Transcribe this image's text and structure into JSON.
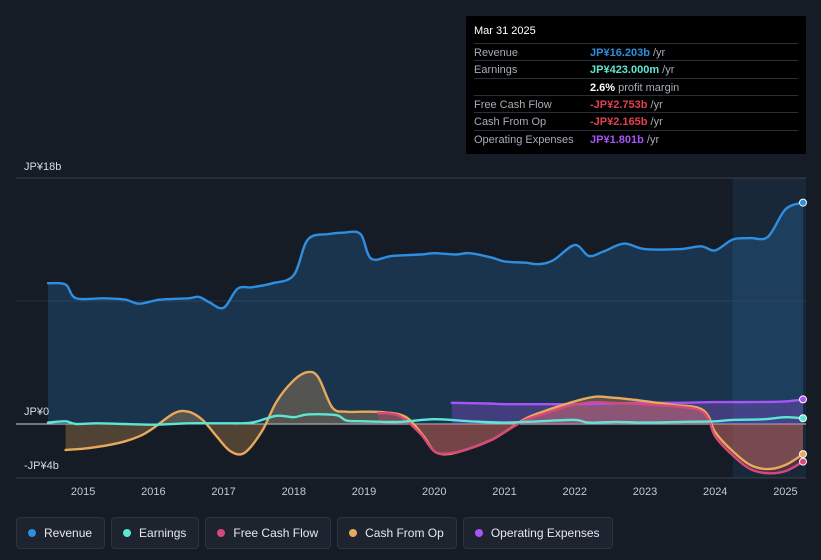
{
  "tooltip": {
    "date": "Mar 31 2025",
    "rows": [
      {
        "label": "Revenue",
        "value": "JP¥16.203b",
        "unit": "/yr",
        "color": "#2e8ee0"
      },
      {
        "label": "Earnings",
        "value": "JP¥423.000m",
        "unit": "/yr",
        "color": "#5ee6d5"
      },
      {
        "label": "",
        "value": "2.6%",
        "unit": "profit margin",
        "color": "#ffffff"
      },
      {
        "label": "Free Cash Flow",
        "value": "-JP¥2.753b",
        "unit": "/yr",
        "color": "#e04050"
      },
      {
        "label": "Cash From Op",
        "value": "-JP¥2.165b",
        "unit": "/yr",
        "color": "#e04050"
      },
      {
        "label": "Operating Expenses",
        "value": "JP¥1.801b",
        "unit": "/yr",
        "color": "#a855f7"
      }
    ]
  },
  "legend": [
    {
      "label": "Revenue",
      "color": "#2e8ee0"
    },
    {
      "label": "Earnings",
      "color": "#5ee6d5"
    },
    {
      "label": "Free Cash Flow",
      "color": "#d9487a"
    },
    {
      "label": "Cash From Op",
      "color": "#e8a95a"
    },
    {
      "label": "Operating Expenses",
      "color": "#a855f7"
    }
  ],
  "chart_data": {
    "type": "line",
    "y_tick_labels": [
      "JP¥18b",
      "JP¥0",
      "-JP¥4b"
    ],
    "y_ticks": [
      18,
      0,
      -4
    ],
    "ylim": [
      -4,
      18
    ],
    "xlim": [
      2014.5,
      2025.25
    ],
    "x_tick_labels": [
      "2015",
      "2016",
      "2017",
      "2018",
      "2019",
      "2020",
      "2021",
      "2022",
      "2023",
      "2024",
      "2025"
    ],
    "x_ticks": [
      2015,
      2016,
      2017,
      2018,
      2019,
      2020,
      2021,
      2022,
      2023,
      2024,
      2025
    ],
    "forecast_shade_start": 2024.25,
    "series": [
      {
        "name": "Revenue",
        "color": "#2e8ee0",
        "area": true,
        "points": [
          [
            2014.5,
            10.3
          ],
          [
            2014.75,
            10.2
          ],
          [
            2014.9,
            9.2
          ],
          [
            2015.3,
            9.2
          ],
          [
            2015.6,
            9.1
          ],
          [
            2015.8,
            8.8
          ],
          [
            2016.1,
            9.1
          ],
          [
            2016.5,
            9.2
          ],
          [
            2016.65,
            9.3
          ],
          [
            2016.8,
            8.9
          ],
          [
            2017.0,
            8.5
          ],
          [
            2017.2,
            9.9
          ],
          [
            2017.4,
            10.0
          ],
          [
            2017.7,
            10.3
          ],
          [
            2018.0,
            10.9
          ],
          [
            2018.2,
            13.5
          ],
          [
            2018.5,
            13.9
          ],
          [
            2018.7,
            14.0
          ],
          [
            2018.95,
            13.9
          ],
          [
            2019.1,
            12.1
          ],
          [
            2019.4,
            12.3
          ],
          [
            2019.8,
            12.4
          ],
          [
            2020.0,
            12.5
          ],
          [
            2020.3,
            12.4
          ],
          [
            2020.5,
            12.5
          ],
          [
            2020.8,
            12.2
          ],
          [
            2021.0,
            11.9
          ],
          [
            2021.3,
            11.8
          ],
          [
            2021.5,
            11.7
          ],
          [
            2021.7,
            12.0
          ],
          [
            2022.0,
            13.1
          ],
          [
            2022.2,
            12.3
          ],
          [
            2022.4,
            12.6
          ],
          [
            2022.7,
            13.2
          ],
          [
            2023.0,
            12.8
          ],
          [
            2023.5,
            12.8
          ],
          [
            2023.8,
            13.0
          ],
          [
            2024.0,
            12.7
          ],
          [
            2024.25,
            13.5
          ],
          [
            2024.5,
            13.6
          ],
          [
            2024.75,
            13.7
          ],
          [
            2025.0,
            15.7
          ],
          [
            2025.25,
            16.2
          ]
        ]
      },
      {
        "name": "Operating Expenses",
        "color": "#a855f7",
        "area": true,
        "points": [
          [
            2020.25,
            1.55
          ],
          [
            2020.75,
            1.5
          ],
          [
            2021.0,
            1.45
          ],
          [
            2021.5,
            1.45
          ],
          [
            2022.0,
            1.45
          ],
          [
            2022.5,
            1.5
          ],
          [
            2023.0,
            1.55
          ],
          [
            2023.5,
            1.55
          ],
          [
            2024.0,
            1.6
          ],
          [
            2024.5,
            1.6
          ],
          [
            2025.0,
            1.65
          ],
          [
            2025.25,
            1.8
          ]
        ]
      },
      {
        "name": "Cash From Op",
        "color": "#e8a95a",
        "area": true,
        "points": [
          [
            2014.75,
            -1.9
          ],
          [
            2015.1,
            -1.75
          ],
          [
            2015.5,
            -1.4
          ],
          [
            2015.8,
            -0.9
          ],
          [
            2016.0,
            -0.3
          ],
          [
            2016.3,
            0.8
          ],
          [
            2016.5,
            0.9
          ],
          [
            2016.7,
            0.3
          ],
          [
            2016.9,
            -0.9
          ],
          [
            2017.1,
            -2.0
          ],
          [
            2017.3,
            -2.1
          ],
          [
            2017.55,
            -0.5
          ],
          [
            2017.75,
            1.6
          ],
          [
            2018.0,
            3.2
          ],
          [
            2018.2,
            3.8
          ],
          [
            2018.35,
            3.4
          ],
          [
            2018.55,
            1.2
          ],
          [
            2018.75,
            0.9
          ],
          [
            2019.0,
            0.9
          ],
          [
            2019.3,
            0.85
          ],
          [
            2019.6,
            0.5
          ],
          [
            2019.85,
            -0.9
          ],
          [
            2020.0,
            -2.0
          ],
          [
            2020.2,
            -2.2
          ],
          [
            2020.5,
            -1.8
          ],
          [
            2020.8,
            -1.2
          ],
          [
            2021.0,
            -0.6
          ],
          [
            2021.3,
            0.4
          ],
          [
            2021.6,
            1.0
          ],
          [
            2021.9,
            1.5
          ],
          [
            2022.1,
            1.8
          ],
          [
            2022.3,
            2.0
          ],
          [
            2022.5,
            1.95
          ],
          [
            2022.8,
            1.8
          ],
          [
            2023.1,
            1.6
          ],
          [
            2023.4,
            1.4
          ],
          [
            2023.75,
            1.2
          ],
          [
            2023.9,
            0.6
          ],
          [
            2024.0,
            -0.6
          ],
          [
            2024.25,
            -2.0
          ],
          [
            2024.5,
            -3.0
          ],
          [
            2024.75,
            -3.3
          ],
          [
            2025.0,
            -3.0
          ],
          [
            2025.25,
            -2.2
          ]
        ]
      },
      {
        "name": "Free Cash Flow",
        "color": "#d9487a",
        "area": true,
        "points": [
          [
            2019.2,
            0.8
          ],
          [
            2019.5,
            0.6
          ],
          [
            2019.8,
            -0.7
          ],
          [
            2020.0,
            -2.0
          ],
          [
            2020.2,
            -2.15
          ],
          [
            2020.5,
            -1.8
          ],
          [
            2020.8,
            -1.2
          ],
          [
            2021.0,
            -0.6
          ],
          [
            2021.3,
            0.3
          ],
          [
            2021.6,
            0.8
          ],
          [
            2021.9,
            1.3
          ],
          [
            2022.1,
            1.5
          ],
          [
            2022.3,
            1.6
          ],
          [
            2022.5,
            1.55
          ],
          [
            2022.8,
            1.5
          ],
          [
            2023.1,
            1.4
          ],
          [
            2023.4,
            1.3
          ],
          [
            2023.75,
            1.05
          ],
          [
            2023.9,
            0.4
          ],
          [
            2024.0,
            -0.9
          ],
          [
            2024.25,
            -2.3
          ],
          [
            2024.5,
            -3.3
          ],
          [
            2024.75,
            -3.6
          ],
          [
            2025.0,
            -3.45
          ],
          [
            2025.25,
            -2.75
          ]
        ]
      },
      {
        "name": "Earnings",
        "color": "#5ee6d5",
        "area": false,
        "points": [
          [
            2014.5,
            0.1
          ],
          [
            2014.75,
            0.2
          ],
          [
            2014.9,
            0.0
          ],
          [
            2015.2,
            0.05
          ],
          [
            2015.6,
            0.0
          ],
          [
            2016.0,
            -0.05
          ],
          [
            2016.5,
            0.05
          ],
          [
            2017.0,
            0.05
          ],
          [
            2017.4,
            0.1
          ],
          [
            2017.75,
            0.6
          ],
          [
            2018.0,
            0.5
          ],
          [
            2018.2,
            0.7
          ],
          [
            2018.6,
            0.65
          ],
          [
            2018.75,
            0.25
          ],
          [
            2019.0,
            0.2
          ],
          [
            2019.5,
            0.15
          ],
          [
            2020.0,
            0.35
          ],
          [
            2020.5,
            0.2
          ],
          [
            2021.0,
            0.1
          ],
          [
            2021.5,
            0.2
          ],
          [
            2022.0,
            0.3
          ],
          [
            2022.2,
            0.1
          ],
          [
            2022.6,
            0.15
          ],
          [
            2023.0,
            0.1
          ],
          [
            2023.5,
            0.15
          ],
          [
            2024.0,
            0.2
          ],
          [
            2024.25,
            0.3
          ],
          [
            2024.7,
            0.35
          ],
          [
            2025.0,
            0.5
          ],
          [
            2025.25,
            0.42
          ]
        ]
      }
    ]
  }
}
